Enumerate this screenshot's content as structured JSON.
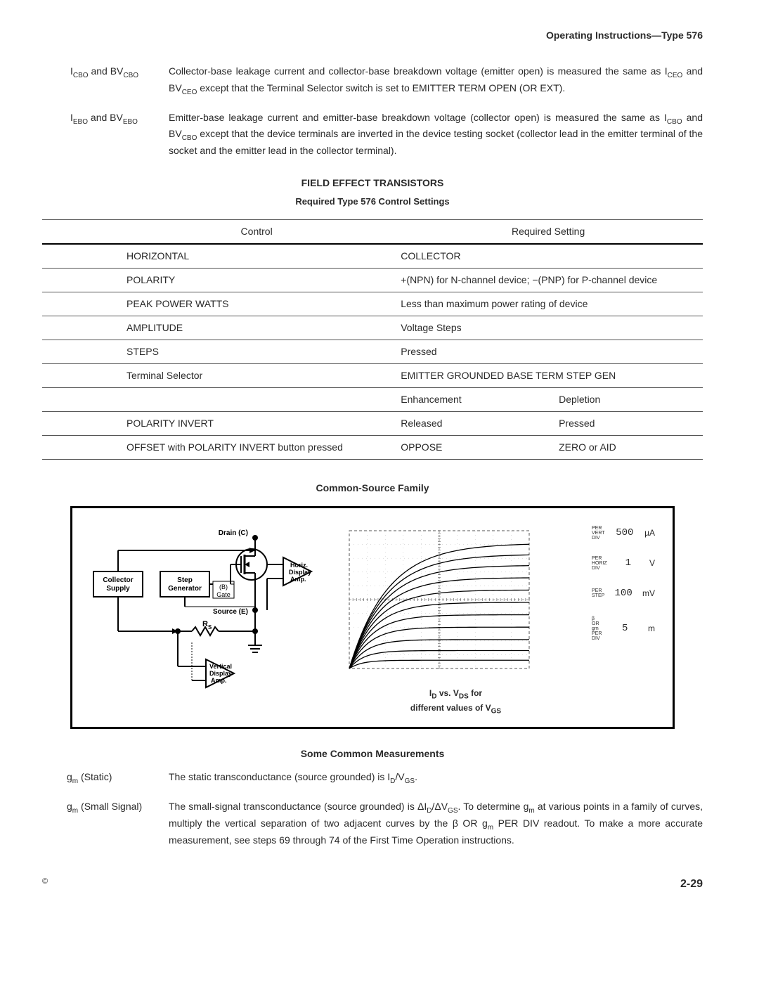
{
  "header": "Operating Instructions—Type 576",
  "definitions": [
    {
      "term_html": "I<sub>CBO</sub> and BV<sub>CBO</sub>",
      "desc": "Collector-base leakage current and collector-base breakdown voltage (emitter open) is measured the same as I_CEO and BV_CEO except that the Terminal Selector switch is set to EMITTER TERM OPEN (OR EXT)."
    },
    {
      "term_html": "I<sub>EBO</sub> and BV<sub>EBO</sub>",
      "desc": "Emitter-base leakage current and emitter-base breakdown voltage (collector open) is measured the same as I_CBO and BV_CBO except that the device terminals are inverted in the device testing socket (collector lead in the emitter terminal of the socket and the emitter lead in the collector terminal)."
    }
  ],
  "fet_section": {
    "title": "FIELD EFFECT TRANSISTORS",
    "subtitle": "Required Type 576 Control Settings",
    "headers": {
      "control": "Control",
      "setting": "Required Setting"
    },
    "rows": [
      {
        "control": "HORIZONTAL",
        "setting": "COLLECTOR"
      },
      {
        "control": "POLARITY",
        "setting": "+(NPN) for N-channel device; −(PNP) for P-channel device"
      },
      {
        "control": "PEAK POWER WATTS",
        "setting": "Less than maximum power rating of device"
      },
      {
        "control": "AMPLITUDE",
        "setting": "Voltage Steps"
      },
      {
        "control": "STEPS",
        "setting": "Pressed"
      },
      {
        "control": "Terminal Selector",
        "setting": "EMITTER GROUNDED BASE TERM STEP GEN"
      }
    ],
    "mode_headers": {
      "enh": "Enhancement",
      "dep": "Depletion"
    },
    "mode_rows": [
      {
        "control": "POLARITY INVERT",
        "enh": "Released",
        "dep": "Pressed"
      },
      {
        "control": "OFFSET with POLARITY INVERT button pressed",
        "enh": "OPPOSE",
        "dep": "ZERO or AID"
      }
    ]
  },
  "figure": {
    "title": "Common-Source Family",
    "blocks": {
      "collector_supply": "Collector\nSupply",
      "step_gen": "Step\nGenerator",
      "horiz_amp": "Horiz.\nDisplay\nAmp.",
      "vert_amp": "Vertical\nDisplay\nAmp.",
      "drain": "Drain (C)",
      "source": "Source (E)",
      "gate_b": "(B)\nGate",
      "rs": "R_S"
    },
    "curves": {
      "type": "fet-family",
      "xlim": [
        0,
        10
      ],
      "ylim": [
        0,
        10
      ],
      "n_curves": 11,
      "k_sat_levels": [
        0.6,
        1.3,
        2.1,
        3.0,
        3.9,
        4.8,
        5.7,
        6.6,
        7.5,
        8.3,
        9.1
      ],
      "knee_x": 2.0,
      "grid_color": "#888",
      "line_color": "#000",
      "caption_html": "I<sub>D</sub> vs. V<sub>DS</sub> for<br>different values of V<sub>GS</sub>"
    },
    "readouts": [
      {
        "label": "PER\nVERT\nDIV",
        "value": "500",
        "unit": "µA"
      },
      {
        "label": "PER\nHORIZ\nDIV",
        "value": "1",
        "unit": "V"
      },
      {
        "label": "PER\nSTEP",
        "value": "100",
        "unit": "mV"
      },
      {
        "label": "β\nOR\ngm\nPER\nDIV",
        "value": "5",
        "unit": "m"
      }
    ]
  },
  "measurements": {
    "title": "Some Common Measurements",
    "items": [
      {
        "term_html": "g<sub>m</sub> (Static)",
        "desc": "The static transconductance (source grounded) is I_D/V_GS."
      },
      {
        "term_html": "g<sub>m</sub> (Small Signal)",
        "desc": "The small-signal transconductance (source grounded) is ΔI_D/ΔV_GS. To determine g_m at various points in a family of curves, multiply the vertical separation of two adjacent curves by the β OR g_m PER DIV readout. To make a more accurate measurement, see steps 69 through 74 of the First Time Operation instructions."
      }
    ]
  },
  "page_number": "2-29",
  "copyright": "©"
}
